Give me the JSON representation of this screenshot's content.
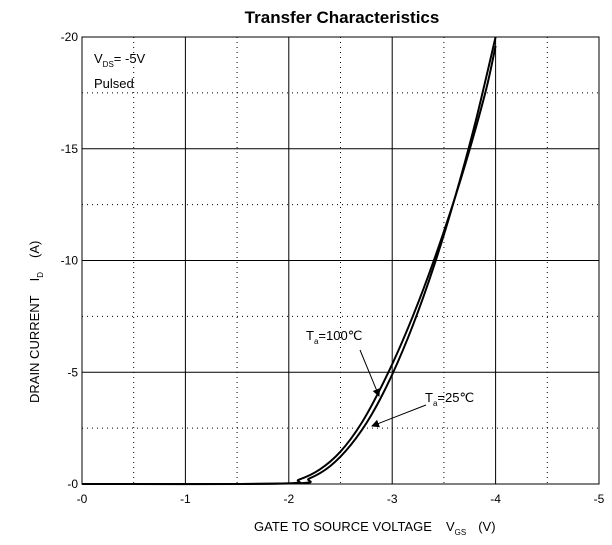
{
  "chart_data": {
    "type": "line",
    "title": "Transfer Characteristics",
    "xlabel": {
      "main": "GATE TO SOURCE VOLTAGE",
      "symbol": "V",
      "subscript": "GS",
      "unit": "(V)"
    },
    "ylabel": {
      "main": "DRAIN CURRENT",
      "symbol": "I",
      "subscript": "D",
      "unit": "(A)"
    },
    "xlim": [
      0,
      -5
    ],
    "ylim": [
      0,
      -20
    ],
    "x_ticks": [
      0,
      -1,
      -2,
      -3,
      -4,
      -5
    ],
    "x_tick_labels": [
      "-0",
      "-1",
      "-2",
      "-3",
      "-4",
      "-5"
    ],
    "y_ticks": [
      0,
      -5,
      -10,
      -15,
      -20
    ],
    "y_tick_labels": [
      "-0",
      "-5",
      "-10",
      "-15",
      "-20"
    ],
    "grid": "solid at major ticks, dotted at half intervals",
    "conditions": [
      {
        "symbol": "V",
        "subscript": "DS",
        "text": "= -5V"
      },
      {
        "text": "Pulsed"
      }
    ],
    "series": [
      {
        "name": "Ta=100℃",
        "label": {
          "symbol": "T",
          "subscript": "a",
          "text": "=100℃"
        },
        "x": [
          0,
          -1.9,
          -2.1,
          -2.3,
          -2.5,
          -2.7,
          -2.9,
          -3.1,
          -3.3,
          -3.5,
          -3.7,
          -3.9,
          -4.0
        ],
        "y": [
          0,
          -0.02,
          -0.2,
          -0.65,
          -1.45,
          -2.7,
          -4.4,
          -6.4,
          -8.7,
          -11.3,
          -14.2,
          -17.5,
          -19.6
        ]
      },
      {
        "name": "Ta=25℃",
        "label": {
          "symbol": "T",
          "subscript": "a",
          "text": "=25℃"
        },
        "x": [
          0,
          -2.0,
          -2.2,
          -2.4,
          -2.6,
          -2.8,
          -3.0,
          -3.2,
          -3.4,
          -3.6,
          -3.8,
          -4.0
        ],
        "y": [
          0,
          -0.02,
          -0.25,
          -0.8,
          -1.75,
          -3.1,
          -4.9,
          -7.1,
          -9.7,
          -12.7,
          -16.1,
          -20.0
        ]
      }
    ]
  }
}
